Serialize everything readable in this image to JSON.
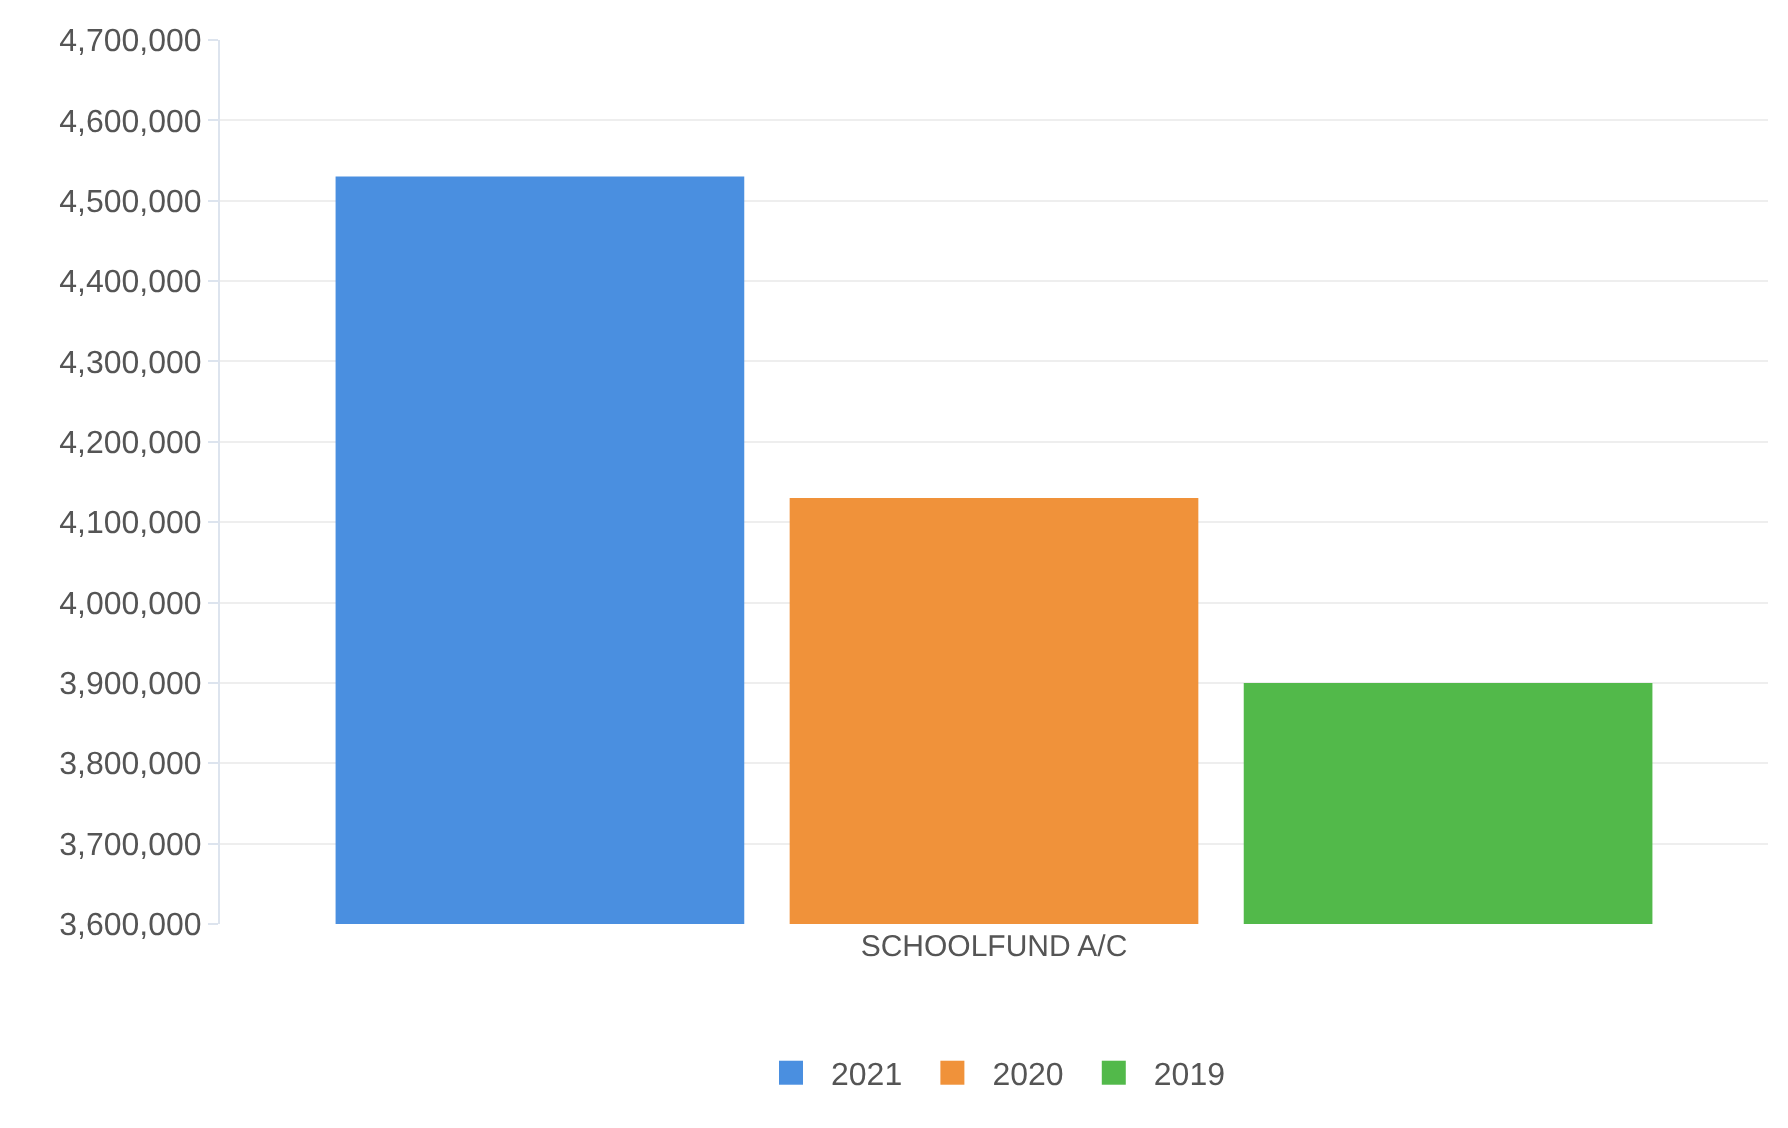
{
  "chart_data": {
    "type": "bar",
    "categories": [
      "SCHOOLFUND A/C"
    ],
    "series": [
      {
        "name": "2021",
        "color": "#4a8fe0",
        "values": [
          4530000
        ]
      },
      {
        "name": "2020",
        "color": "#f0923a",
        "values": [
          4130000
        ]
      },
      {
        "name": "2019",
        "color": "#52b94a",
        "values": [
          3900000
        ]
      }
    ],
    "ylim": [
      3600000,
      4700000
    ],
    "yticks": [
      {
        "value": 3600000,
        "label": "3,600,000"
      },
      {
        "value": 3700000,
        "label": "3,700,000"
      },
      {
        "value": 3800000,
        "label": "3,800,000"
      },
      {
        "value": 3900000,
        "label": "3,900,000"
      },
      {
        "value": 4000000,
        "label": "4,000,000"
      },
      {
        "value": 4100000,
        "label": "4,100,000"
      },
      {
        "value": 4200000,
        "label": "4,200,000"
      },
      {
        "value": 4300000,
        "label": "4,300,000"
      },
      {
        "value": 4400000,
        "label": "4,400,000"
      },
      {
        "value": 4500000,
        "label": "4,500,000"
      },
      {
        "value": 4600000,
        "label": "4,600,000"
      },
      {
        "value": 4700000,
        "label": "4,700,000"
      }
    ],
    "grid": "y",
    "legend": "bottom"
  }
}
